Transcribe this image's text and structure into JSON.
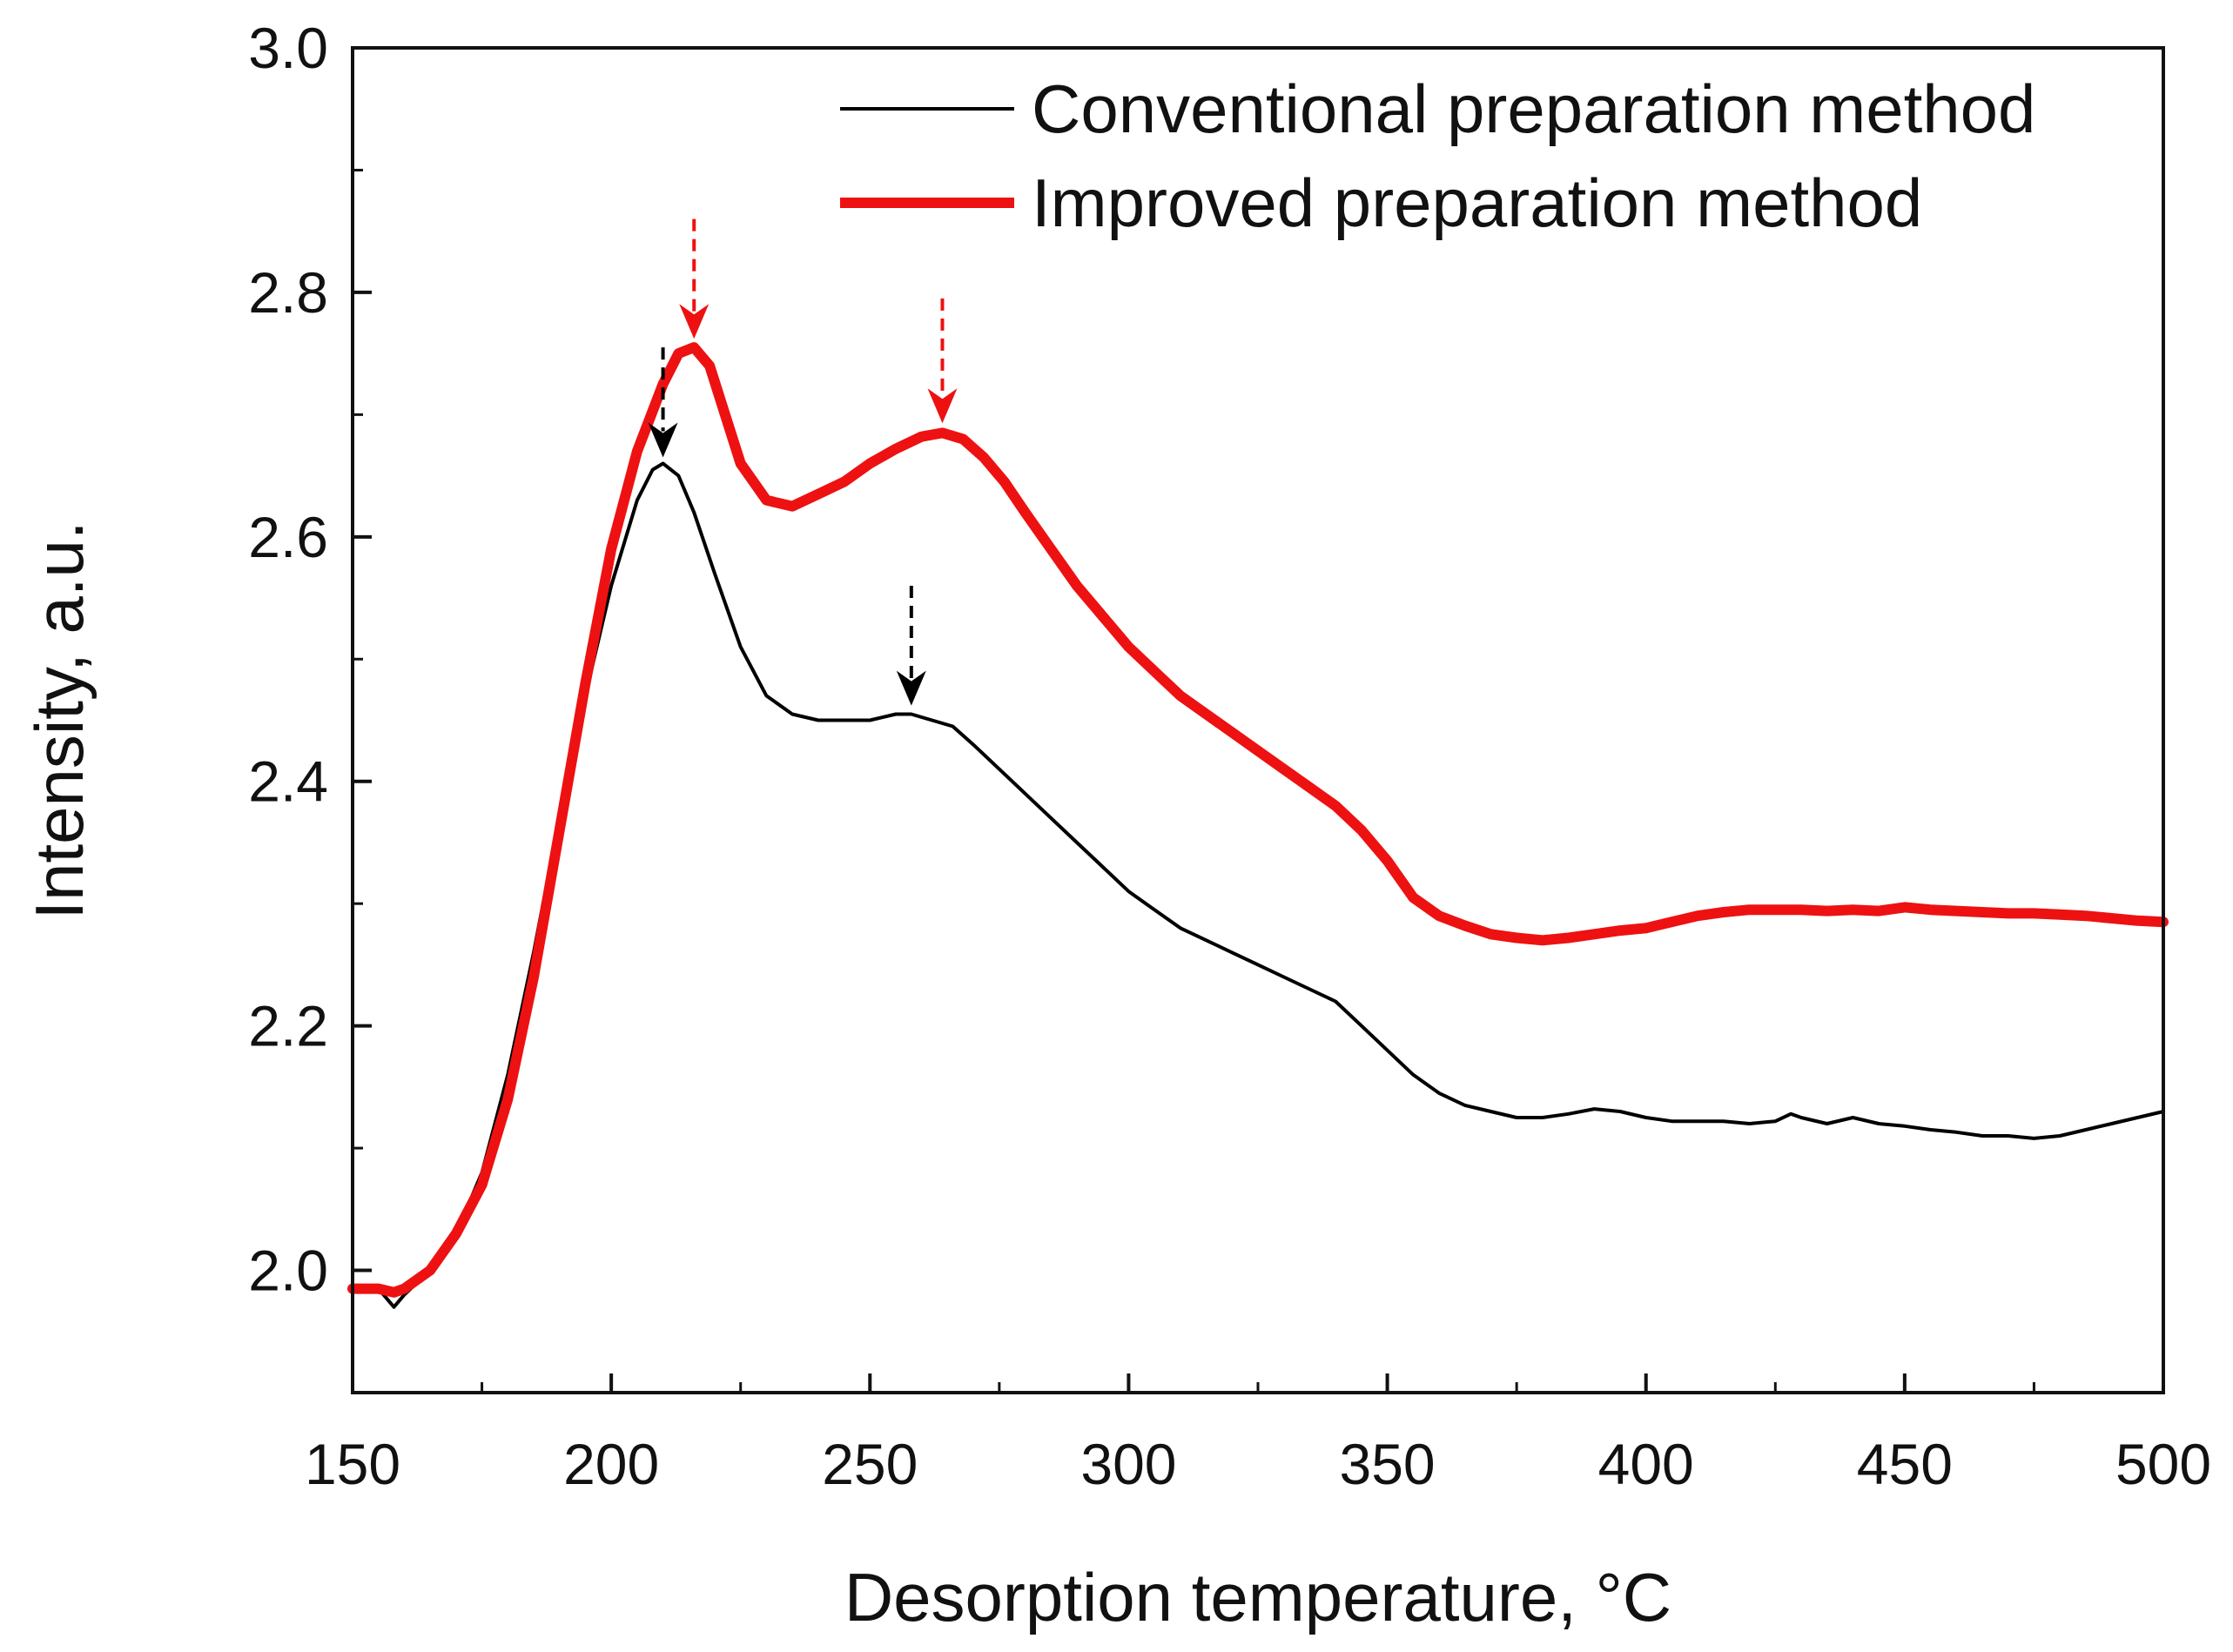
{
  "chart_data": {
    "type": "line",
    "title": "",
    "xlabel": "Desorption temperature, °C",
    "ylabel": "Intensity, a.u.",
    "xlim": [
      150,
      500
    ],
    "ylim": [
      1.9,
      3.0
    ],
    "xticks": [
      150,
      200,
      250,
      300,
      350,
      400,
      450,
      500
    ],
    "yticks": [
      2.0,
      2.2,
      2.4,
      2.6,
      2.8,
      3.0
    ],
    "xtick_labels": [
      "150",
      "200",
      "250",
      "300",
      "350",
      "400",
      "450",
      "500"
    ],
    "ytick_labels": [
      "2.0",
      "2.2",
      "2.4",
      "2.6",
      "2.8",
      "3.0"
    ],
    "grid": false,
    "legend_position": "top-right",
    "series": [
      {
        "name": "Conventional preparation method",
        "color": "#000000",
        "style": "thin",
        "x": [
          150,
          155,
          158,
          160,
          165,
          170,
          175,
          180,
          185,
          190,
          195,
          200,
          205,
          208,
          210,
          213,
          216,
          220,
          225,
          230,
          235,
          240,
          245,
          250,
          255,
          258,
          262,
          266,
          270,
          275,
          280,
          285,
          290,
          295,
          300,
          305,
          310,
          315,
          320,
          325,
          330,
          335,
          340,
          345,
          350,
          355,
          360,
          365,
          370,
          375,
          380,
          385,
          390,
          395,
          400,
          405,
          410,
          415,
          420,
          425,
          428,
          430,
          435,
          440,
          445,
          450,
          455,
          460,
          465,
          470,
          475,
          480,
          485,
          490,
          495,
          500
        ],
        "y": [
          1.985,
          1.985,
          1.97,
          1.98,
          2.0,
          2.03,
          2.08,
          2.16,
          2.26,
          2.37,
          2.47,
          2.56,
          2.63,
          2.655,
          2.66,
          2.65,
          2.62,
          2.57,
          2.51,
          2.47,
          2.455,
          2.45,
          2.45,
          2.45,
          2.455,
          2.455,
          2.45,
          2.445,
          2.43,
          2.41,
          2.39,
          2.37,
          2.35,
          2.33,
          2.31,
          2.295,
          2.28,
          2.27,
          2.26,
          2.25,
          2.24,
          2.23,
          2.22,
          2.2,
          2.18,
          2.16,
          2.145,
          2.135,
          2.13,
          2.125,
          2.125,
          2.128,
          2.132,
          2.13,
          2.125,
          2.122,
          2.122,
          2.122,
          2.12,
          2.122,
          2.128,
          2.125,
          2.12,
          2.125,
          2.12,
          2.118,
          2.115,
          2.113,
          2.11,
          2.11,
          2.108,
          2.11,
          2.115,
          2.12,
          2.125,
          2.13
        ]
      },
      {
        "name": "Improved preparation method",
        "color": "#ee1111",
        "style": "thick",
        "x": [
          150,
          155,
          158,
          160,
          165,
          170,
          175,
          180,
          185,
          190,
          195,
          200,
          205,
          210,
          213,
          216,
          219,
          222,
          225,
          230,
          235,
          240,
          245,
          250,
          255,
          260,
          264,
          268,
          272,
          276,
          280,
          285,
          290,
          295,
          300,
          305,
          310,
          315,
          320,
          325,
          330,
          335,
          340,
          345,
          350,
          355,
          360,
          365,
          370,
          375,
          380,
          385,
          390,
          395,
          400,
          405,
          410,
          415,
          420,
          425,
          430,
          435,
          440,
          445,
          450,
          455,
          460,
          465,
          470,
          475,
          480,
          485,
          490,
          495,
          500
        ],
        "y": [
          1.985,
          1.985,
          1.982,
          1.985,
          2.0,
          2.03,
          2.07,
          2.14,
          2.24,
          2.36,
          2.48,
          2.59,
          2.67,
          2.725,
          2.75,
          2.755,
          2.74,
          2.7,
          2.66,
          2.63,
          2.625,
          2.635,
          2.645,
          2.66,
          2.672,
          2.682,
          2.685,
          2.68,
          2.665,
          2.645,
          2.62,
          2.59,
          2.56,
          2.535,
          2.51,
          2.49,
          2.47,
          2.455,
          2.44,
          2.425,
          2.41,
          2.395,
          2.38,
          2.36,
          2.335,
          2.305,
          2.29,
          2.282,
          2.275,
          2.272,
          2.27,
          2.272,
          2.275,
          2.278,
          2.28,
          2.285,
          2.29,
          2.293,
          2.295,
          2.295,
          2.295,
          2.294,
          2.295,
          2.294,
          2.297,
          2.295,
          2.294,
          2.293,
          2.292,
          2.292,
          2.291,
          2.29,
          2.288,
          2.286,
          2.285
        ]
      }
    ],
    "annotations": [
      {
        "type": "dashed-arrow",
        "color": "#000000",
        "x": 210,
        "y_from": 2.755,
        "y_to": 2.665
      },
      {
        "type": "dashed-arrow",
        "color": "#000000",
        "x": 258,
        "y_from": 2.56,
        "y_to": 2.462
      },
      {
        "type": "dashed-arrow",
        "color": "#ee1111",
        "x": 216,
        "y_from": 2.86,
        "y_to": 2.762
      },
      {
        "type": "dashed-arrow",
        "color": "#ee1111",
        "x": 264,
        "y_from": 2.795,
        "y_to": 2.693
      }
    ]
  }
}
